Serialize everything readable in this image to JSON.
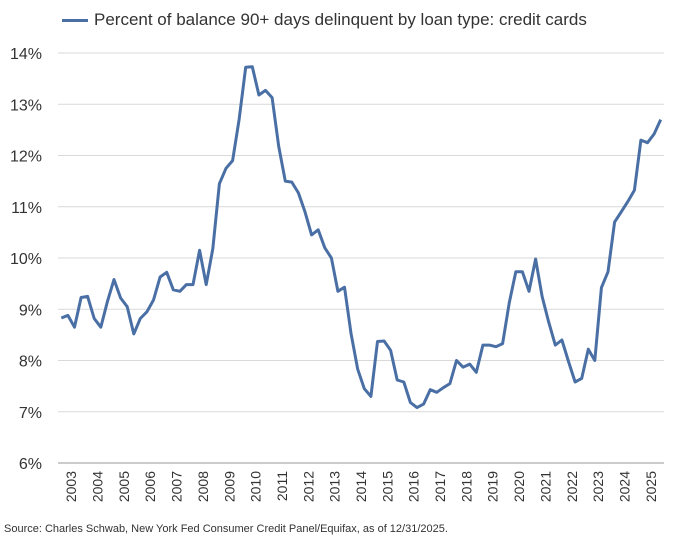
{
  "chart_data": {
    "type": "line",
    "legend": [
      "Percent of balance 90+ days delinquent by loan type: credit cards"
    ],
    "source": "Source: Charles Schwab, New York Fed Consumer Credit Panel/Equifax, as of 12/31/2025.",
    "colors": {
      "line": "#4a6fa5",
      "grid": "#d9d9d9",
      "axis": "#999999"
    },
    "grid": true,
    "legend_position": "top-left",
    "ylim": [
      6,
      14
    ],
    "yticks": [
      "6%",
      "7%",
      "8%",
      "9%",
      "10%",
      "11%",
      "12%",
      "13%",
      "14%"
    ],
    "xticks": [
      "2003",
      "2004",
      "2005",
      "2006",
      "2007",
      "2008",
      "2009",
      "2010",
      "2011",
      "2012",
      "2013",
      "2014",
      "2015",
      "2016",
      "2017",
      "2018",
      "2019",
      "2020",
      "2021",
      "2022",
      "2023",
      "2024",
      "2025"
    ],
    "series": [
      {
        "name": "Percent of balance 90+ days delinquent by loan type: credit cards",
        "x": [
          "2003Q1",
          "2003Q2",
          "2003Q3",
          "2003Q4",
          "2004Q1",
          "2004Q2",
          "2004Q3",
          "2004Q4",
          "2005Q1",
          "2005Q2",
          "2005Q3",
          "2005Q4",
          "2006Q1",
          "2006Q2",
          "2006Q3",
          "2006Q4",
          "2007Q1",
          "2007Q2",
          "2007Q3",
          "2007Q4",
          "2008Q1",
          "2008Q2",
          "2008Q3",
          "2008Q4",
          "2009Q1",
          "2009Q2",
          "2009Q3",
          "2009Q4",
          "2010Q1",
          "2010Q2",
          "2010Q3",
          "2010Q4",
          "2011Q1",
          "2011Q2",
          "2011Q3",
          "2011Q4",
          "2012Q1",
          "2012Q2",
          "2012Q3",
          "2012Q4",
          "2013Q1",
          "2013Q2",
          "2013Q3",
          "2013Q4",
          "2014Q1",
          "2014Q2",
          "2014Q3",
          "2014Q4",
          "2015Q1",
          "2015Q2",
          "2015Q3",
          "2015Q4",
          "2016Q1",
          "2016Q2",
          "2016Q3",
          "2016Q4",
          "2017Q1",
          "2017Q2",
          "2017Q3",
          "2017Q4",
          "2018Q1",
          "2018Q2",
          "2018Q3",
          "2018Q4",
          "2019Q1",
          "2019Q2",
          "2019Q3",
          "2019Q4",
          "2020Q1",
          "2020Q2",
          "2020Q3",
          "2020Q4",
          "2021Q1",
          "2021Q2",
          "2021Q3",
          "2021Q4",
          "2022Q1",
          "2022Q2",
          "2022Q3",
          "2022Q4",
          "2023Q1",
          "2023Q2",
          "2023Q3",
          "2023Q4",
          "2024Q1",
          "2024Q2",
          "2024Q3",
          "2024Q4",
          "2025Q1",
          "2025Q2",
          "2025Q3",
          "2025Q4"
        ],
        "values": [
          8.83,
          8.88,
          8.65,
          9.23,
          9.25,
          8.82,
          8.65,
          9.15,
          9.58,
          9.22,
          9.05,
          8.52,
          8.82,
          8.95,
          9.18,
          9.63,
          9.72,
          9.38,
          9.35,
          9.48,
          9.48,
          10.15,
          9.48,
          10.18,
          11.45,
          11.75,
          11.9,
          12.7,
          13.72,
          13.73,
          13.18,
          13.27,
          13.13,
          12.18,
          11.5,
          11.48,
          11.27,
          10.9,
          10.45,
          10.55,
          10.2,
          10.0,
          9.35,
          9.43,
          8.52,
          7.83,
          7.45,
          7.3,
          8.37,
          8.38,
          8.2,
          7.62,
          7.58,
          7.18,
          7.08,
          7.15,
          7.43,
          7.38,
          7.47,
          7.55,
          8.0,
          7.87,
          7.93,
          7.77,
          8.3,
          8.3,
          8.27,
          8.33,
          9.12,
          9.73,
          9.73,
          9.35,
          9.98,
          9.25,
          8.75,
          8.3,
          8.4,
          7.98,
          7.58,
          7.65,
          8.22,
          8.0,
          9.42,
          9.73,
          10.7,
          10.9,
          11.1,
          11.32,
          12.3,
          12.25,
          12.42,
          12.7
        ]
      }
    ]
  }
}
